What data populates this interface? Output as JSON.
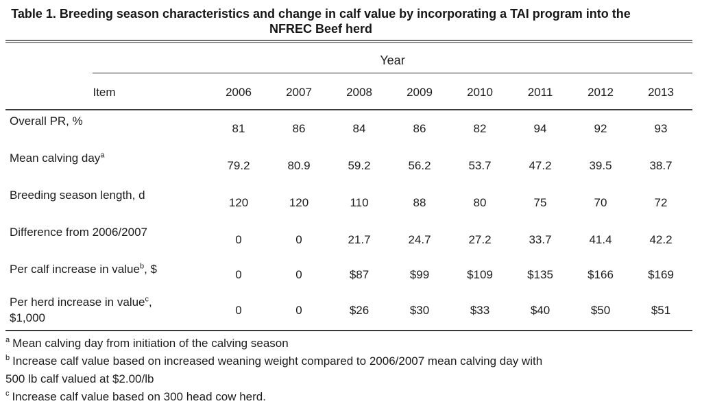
{
  "title": "Table 1. Breeding season characteristics and change in calf value by incorporating a TAI program into the NFREC Beef herd",
  "table": {
    "year_header": "Year",
    "item_header": "Item",
    "years": [
      "2006",
      "2007",
      "2008",
      "2009",
      "2010",
      "2011",
      "2012",
      "2013"
    ],
    "rows": [
      {
        "label": "Overall PR, %",
        "sup": "",
        "suffix": "",
        "values": [
          "81",
          "86",
          "84",
          "86",
          "82",
          "94",
          "92",
          "93"
        ]
      },
      {
        "label": "Mean calving day",
        "sup": "a",
        "suffix": "",
        "values": [
          "79.2",
          "80.9",
          "59.2",
          "56.2",
          "53.7",
          "47.2",
          "39.5",
          "38.7"
        ]
      },
      {
        "label": "Breeding season length, d",
        "sup": "",
        "suffix": "",
        "values": [
          "120",
          "120",
          "110",
          "88",
          "80",
          "75",
          "70",
          "72"
        ]
      },
      {
        "label": "Difference from 2006/2007",
        "sup": "",
        "suffix": "",
        "values": [
          "0",
          "0",
          "21.7",
          "24.7",
          "27.2",
          "33.7",
          "41.4",
          "42.2"
        ]
      },
      {
        "label": "Per calf increase in value",
        "sup": "b",
        "suffix": ", $",
        "values": [
          "0",
          "0",
          "$87",
          "$99",
          "$109",
          "$135",
          "$166",
          "$169"
        ]
      },
      {
        "label": "Per herd increase in value",
        "sup": "c",
        "suffix": ", $1,000",
        "values": [
          "0",
          "0",
          "$26",
          "$30",
          "$33",
          "$40",
          "$50",
          "$51"
        ]
      }
    ]
  },
  "footnotes": [
    {
      "sup": "a",
      "text": "Mean calving day from initiation of the calving season"
    },
    {
      "sup": "b",
      "text": "Increase calf value based on increased weaning weight compared to 2006/2007 mean calving day with 500 lb calf valued at $2.00/lb"
    },
    {
      "sup": "c",
      "text": "Increase calf value based on 300 head cow herd."
    }
  ]
}
